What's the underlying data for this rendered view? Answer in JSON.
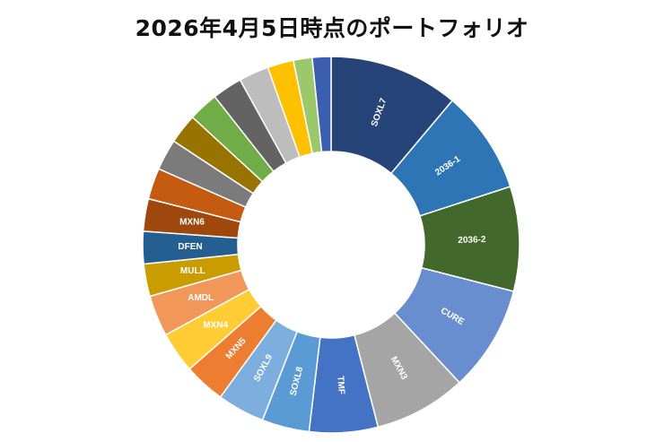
{
  "chart_data": {
    "type": "pie",
    "title": "2026年4月5日時点のポートフォリオ",
    "donut": true,
    "slices": [
      {
        "label": "SOXL7",
        "value": 10.4,
        "color": "#264478"
      },
      {
        "label": "2036-1",
        "value": 8.3,
        "color": "#2E75B6"
      },
      {
        "label": "2036-2",
        "value": 8.4,
        "color": "#43682B"
      },
      {
        "label": "CURE",
        "value": 8.5,
        "color": "#698ED0"
      },
      {
        "label": "MXN3",
        "value": 7.4,
        "color": "#A5A5A5"
      },
      {
        "label": "TMF",
        "value": 5.5,
        "color": "#4472C4"
      },
      {
        "label": "SOXL8",
        "value": 3.8,
        "color": "#5B9BD5"
      },
      {
        "label": "SOXL9",
        "value": 3.8,
        "color": "#7CAFDD"
      },
      {
        "label": "MXN5",
        "value": 3.3,
        "color": "#ED7D31"
      },
      {
        "label": "MXN4",
        "value": 3.3,
        "color": "#FFCD33"
      },
      {
        "label": "AMDL",
        "value": 3.3,
        "color": "#F1975A"
      },
      {
        "label": "MULL",
        "value": 2.6,
        "color": "#C99C00"
      },
      {
        "label": "DFEN",
        "value": 2.6,
        "color": "#255E91"
      },
      {
        "label": "MXN6",
        "value": 2.6,
        "color": "#9E480E"
      },
      {
        "label": "",
        "value": 2.5,
        "color": "#C55A11"
      },
      {
        "label": "",
        "value": 2.5,
        "color": "#7B7B7B"
      },
      {
        "label": "",
        "value": 2.4,
        "color": "#997300"
      },
      {
        "label": "",
        "value": 2.4,
        "color": "#70AD47"
      },
      {
        "label": "",
        "value": 2.4,
        "color": "#636363"
      },
      {
        "label": "",
        "value": 2.4,
        "color": "#BDBDBD"
      },
      {
        "label": "",
        "value": 2.1,
        "color": "#FFC000"
      },
      {
        "label": "",
        "value": 1.5,
        "color": "#9BC86A"
      },
      {
        "label": "",
        "value": 1.5,
        "color": "#3A5FAF"
      }
    ]
  }
}
